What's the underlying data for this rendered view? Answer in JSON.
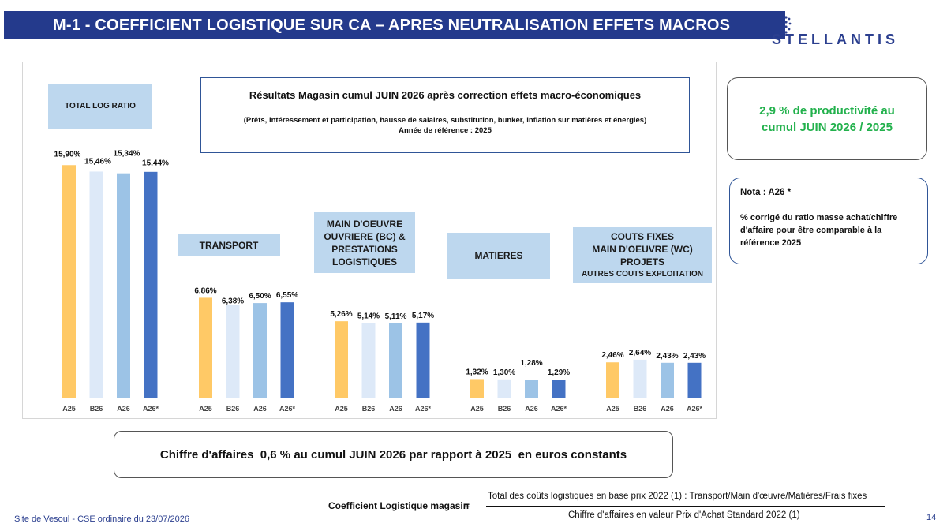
{
  "header": {
    "title": "M-1 - COEFFICIENT LOGISTIQUE SUR CA – APRES NEUTRALISATION EFFETS MACROS",
    "logo_text": "STELLANTIS"
  },
  "result_box": {
    "title": "Résultats Magasin cumul JUIN 2026 après correction effets macro-économiques",
    "subtitle": "(Prêts, intéressement et participation, hausse de salaires, substitution, bunker, inflation sur matières et énergies)",
    "reference": "Année de référence : 2025"
  },
  "productivity_box": {
    "line1": "2,9 % de productivité au",
    "line2": "cumul JUIN 2026 / 2025"
  },
  "nota_box": {
    "title": "Nota : A26 *",
    "body": "% corrigé du ratio masse achat/chiffre d'affaire pour être comparable à la référence 2025"
  },
  "ca_box": {
    "text": "Chiffre d'affaires  0,6 % au cumul JUIN 2026 par rapport à 2025  en euros constants"
  },
  "formula": {
    "label": "Coefficient Logistique magasin",
    "equals": "=",
    "numerator": "Total des coûts logistiques en base prix 2022 (1) : Transport/Main d'œuvre/Matières/Frais fixes",
    "denominator": "Chiffre d'affaires en valeur Prix d'Achat Standard 2022 (1)"
  },
  "footer": {
    "site": "Site de Vesoul - CSE ordinaire du 23/07/2026",
    "page": "14"
  },
  "colors": {
    "A25": "#ffc966",
    "B26": "#dde9f8",
    "A26": "#9cc3e6",
    "A26*": "#4472c4",
    "title_bar": "#243a8c",
    "category_label": "#bdd7ee",
    "productivity_text": "#22b14c"
  },
  "chart_data": {
    "type": "bar",
    "series_names": [
      "A25",
      "B26",
      "A26",
      "A26*"
    ],
    "groups": [
      {
        "label_lines": [
          "TOTAL LOG RATIO"
        ],
        "values": [
          15.9,
          15.46,
          15.34,
          15.44
        ],
        "value_labels": [
          "15,90%",
          "15,46%",
          "15,34%",
          "15,44%"
        ]
      },
      {
        "label_lines": [
          "TRANSPORT"
        ],
        "values": [
          6.86,
          6.38,
          6.5,
          6.55
        ],
        "value_labels": [
          "6,86%",
          "6,38%",
          "6,50%",
          "6,55%"
        ]
      },
      {
        "label_lines": [
          "MAIN D'OEUVRE",
          "OUVRIERE (BC) &",
          "PRESTATIONS",
          "LOGISTIQUES"
        ],
        "values": [
          5.26,
          5.14,
          5.11,
          5.17
        ],
        "value_labels": [
          "5,26%",
          "5,14%",
          "5,11%",
          "5,17%"
        ]
      },
      {
        "label_lines": [
          "MATIERES"
        ],
        "values": [
          1.32,
          1.3,
          1.28,
          1.29
        ],
        "value_labels": [
          "1,32%",
          "1,30%",
          "1,28%",
          "1,29%"
        ]
      },
      {
        "label_lines": [
          "COUTS FIXES",
          "MAIN D'OEUVRE (WC)",
          "PROJETS",
          "AUTRES COUTS EXPLOITATION"
        ],
        "values": [
          2.46,
          2.64,
          2.43,
          2.43
        ],
        "value_labels": [
          "2,46%",
          "2,64%",
          "2,43%",
          "2,43%"
        ]
      }
    ],
    "tick_labels": [
      "A25",
      "B26",
      "A26",
      "A26*"
    ],
    "ylim": [
      0,
      16
    ],
    "grid": false,
    "legend": "none"
  }
}
